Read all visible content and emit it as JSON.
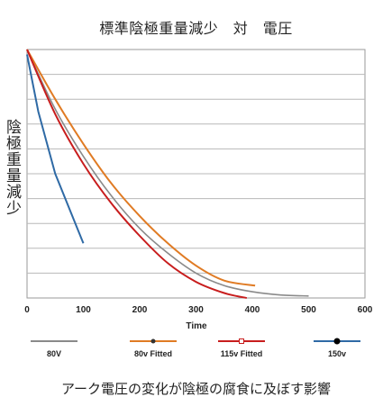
{
  "chart_data": {
    "type": "line",
    "title": "標準陰極重量減少　対　電圧",
    "xlabel": "Time",
    "ylabel": "陰極重量減少",
    "xlim": [
      0,
      600
    ],
    "xticks": [
      "0",
      "100",
      "200",
      "300",
      "400",
      "500",
      "600"
    ],
    "ylim": [
      0,
      100
    ],
    "grid": true,
    "legend_position": "bottom",
    "footnote": "アーク電圧の変化が陰極の腐食に及ぼす影響",
    "series": [
      {
        "name": "80V",
        "color": "#8a8a8a",
        "marker": "none",
        "x": [
          0,
          50,
          100,
          150,
          200,
          250,
          300,
          350,
          400,
          450,
          500
        ],
        "y": [
          100,
          76,
          57,
          41,
          28,
          18,
          10,
          5,
          2.5,
          1.2,
          0.8
        ]
      },
      {
        "name": "80v Fitted",
        "color": "#e07b24",
        "marker": "circle",
        "x": [
          0,
          50,
          100,
          150,
          200,
          250,
          300,
          350,
          405
        ],
        "y": [
          100,
          80,
          62,
          46,
          33,
          22,
          13,
          7,
          5
        ]
      },
      {
        "name": "115v Fitted",
        "color": "#c81d1d",
        "marker": "square",
        "x": [
          0,
          50,
          100,
          150,
          200,
          250,
          300,
          350,
          390
        ],
        "y": [
          100,
          74,
          54,
          38,
          25,
          14,
          6.5,
          2,
          0
        ]
      },
      {
        "name": "150v",
        "color": "#2f6aa5",
        "marker": "circle",
        "x": [
          0,
          20,
          50,
          100
        ],
        "y": [
          98,
          75,
          50,
          22
        ]
      }
    ]
  }
}
